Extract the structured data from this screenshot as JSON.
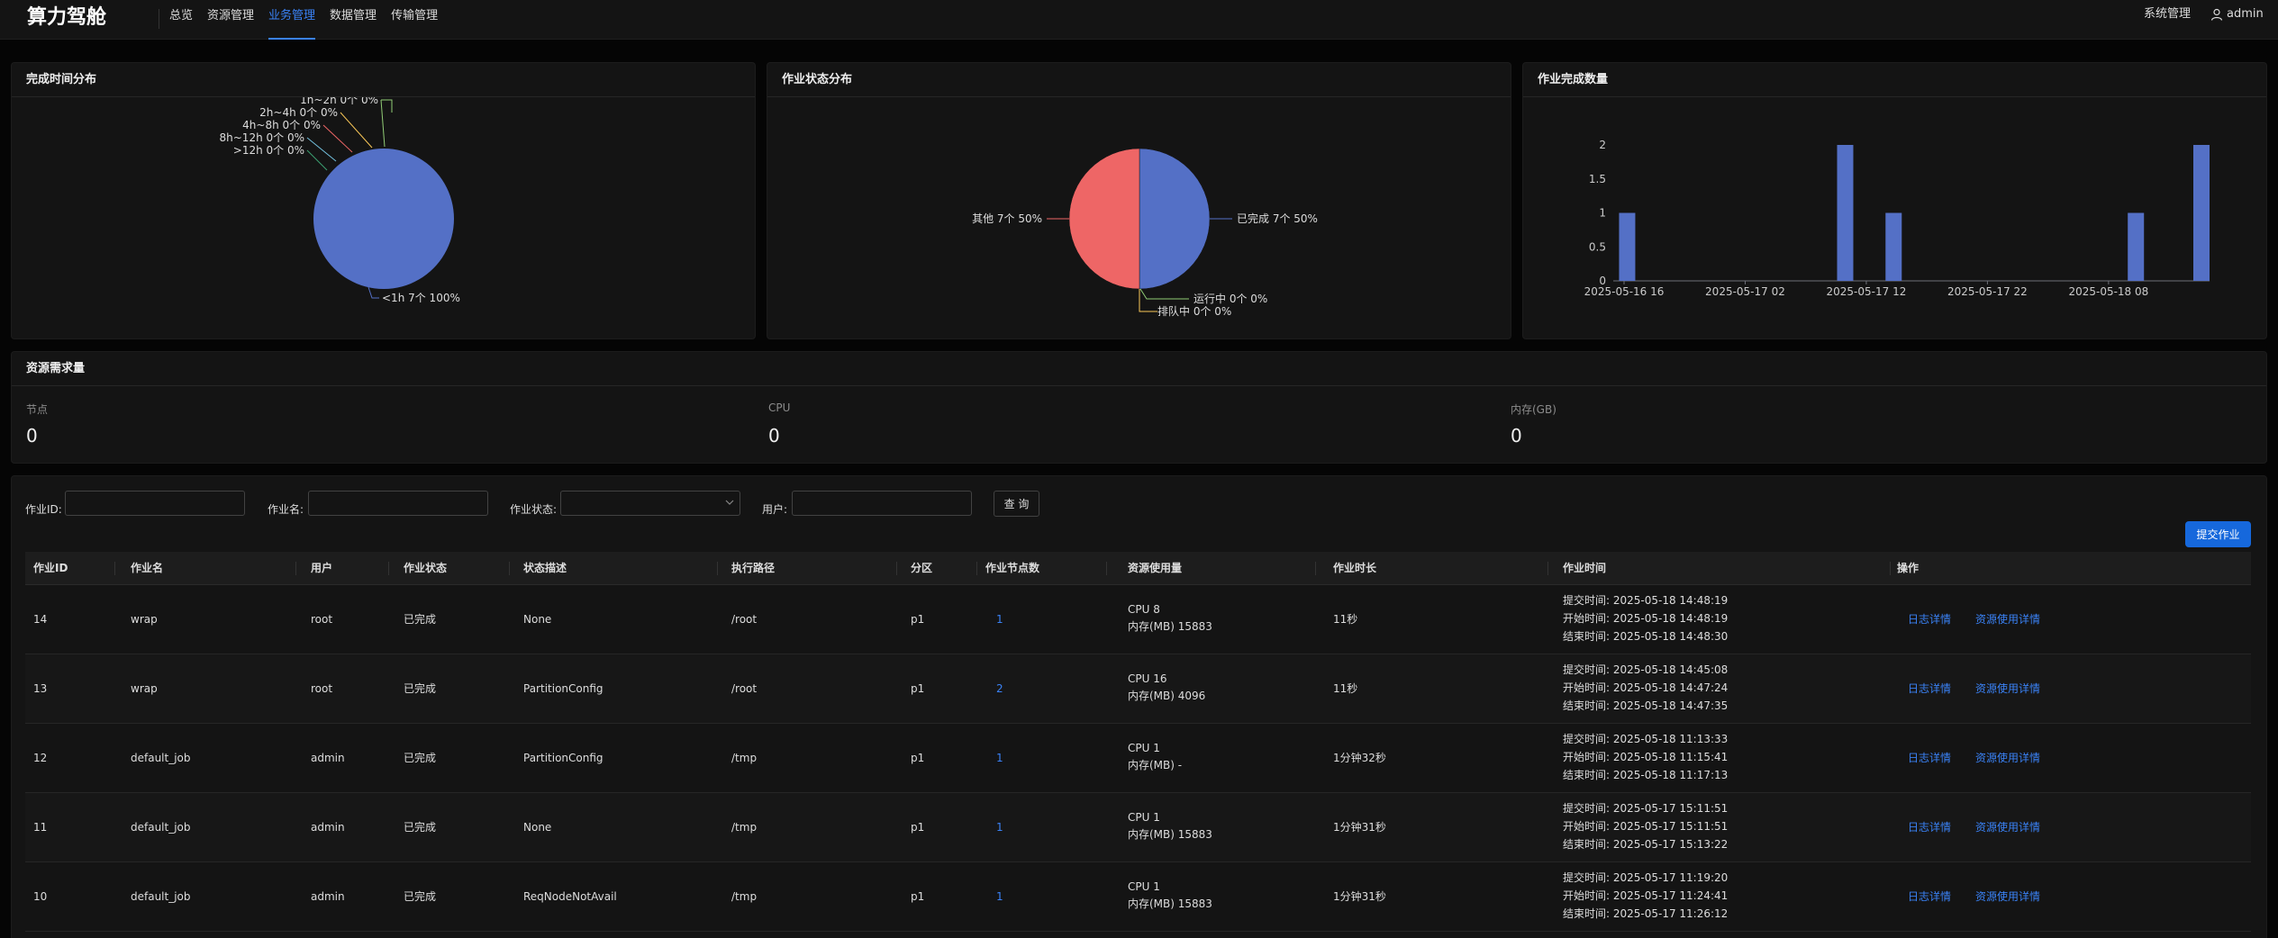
{
  "header": {
    "logo": "算力驾舱",
    "nav": [
      {
        "label": "总览"
      },
      {
        "label": "资源管理"
      },
      {
        "label": "业务管理"
      },
      {
        "label": "数据管理"
      },
      {
        "label": "传输管理"
      }
    ],
    "active_nav": "业务管理",
    "system": "系统管理",
    "user": "admin"
  },
  "panels": {
    "completion_time": "完成时间分布",
    "job_status": "作业状态分布",
    "job_count": "作业完成数量",
    "resource": "资源需求量"
  },
  "chart_data": [
    {
      "type": "pie",
      "title": "完成时间分布",
      "labels": [
        "<1h 7个 100%",
        "1h~2h 0个 0%",
        "2h~4h 0个 0%",
        "4h~8h 0个 0%",
        "8h~12h 0个 0%",
        ">12h 0个 0%"
      ],
      "values": [
        7,
        0,
        0,
        0,
        0,
        0
      ],
      "colors": [
        "#5470c6",
        "#91cc75",
        "#fac858",
        "#ee6666",
        "#73c0de",
        "#3ba272"
      ]
    },
    {
      "type": "pie",
      "title": "作业状态分布",
      "labels": [
        "已完成 7个 50%",
        "运行中 0个 0%",
        "排队中 0个 0%",
        "其他 7个 50%"
      ],
      "values": [
        7,
        0,
        0,
        7
      ],
      "colors": [
        "#5470c6",
        "#91cc75",
        "#fac858",
        "#ee6666"
      ]
    },
    {
      "type": "bar",
      "title": "作业完成数量",
      "x_ticks": [
        "2025-05-16 16",
        "2025-05-17 02",
        "2025-05-17 12",
        "2025-05-17 22",
        "2025-05-18 08"
      ],
      "y_ticks": [
        "0",
        "0.5",
        "1",
        "1.5",
        "2"
      ],
      "ylim": [
        0,
        2
      ],
      "xlim_hours": [
        0,
        47
      ],
      "bars_hour_offset": [
        1,
        19,
        23,
        43,
        47
      ],
      "values": [
        1,
        2,
        1,
        1,
        2
      ],
      "color": "#5470c6"
    }
  ],
  "resource": {
    "items": [
      {
        "label": "节点",
        "value": "0"
      },
      {
        "label": "CPU",
        "value": "0"
      },
      {
        "label": "内存(GB)",
        "value": "0"
      }
    ]
  },
  "filters": {
    "job_id": "作业ID:",
    "job_name": "作业名:",
    "job_status": "作业状态:",
    "user": "用户:",
    "query": "查 询",
    "submit": "提交作业"
  },
  "table": {
    "columns": [
      "作业ID",
      "作业名",
      "用户",
      "作业状态",
      "状态描述",
      "执行路径",
      "分区",
      "作业节点数",
      "资源使用量",
      "作业时长",
      "作业时间",
      "操作"
    ],
    "rows": [
      {
        "id": "14",
        "name": "wrap",
        "user": "root",
        "status": "已完成",
        "desc": "None",
        "path": "/root",
        "partition": "p1",
        "nodes": "1",
        "cpu": "CPU    8",
        "mem": "内存(MB)    15883",
        "duration": "11秒",
        "submit": "提交时间: 2025-05-18 14:48:19",
        "start": "开始时间: 2025-05-18 14:48:19",
        "end": "结束时间: 2025-05-18 14:48:30",
        "op1": "日志详情",
        "op2": "资源使用详情"
      },
      {
        "id": "13",
        "name": "wrap",
        "user": "root",
        "status": "已完成",
        "desc": "PartitionConfig",
        "path": "/root",
        "partition": "p1",
        "nodes": "2",
        "cpu": "CPU    16",
        "mem": "内存(MB)    4096",
        "duration": "11秒",
        "submit": "提交时间: 2025-05-18 14:45:08",
        "start": "开始时间: 2025-05-18 14:47:24",
        "end": "结束时间: 2025-05-18 14:47:35",
        "op1": "日志详情",
        "op2": "资源使用详情"
      },
      {
        "id": "12",
        "name": "default_job",
        "user": "admin",
        "status": "已完成",
        "desc": "PartitionConfig",
        "path": "/tmp",
        "partition": "p1",
        "nodes": "1",
        "cpu": "CPU    1",
        "mem": "内存(MB)    -",
        "duration": "1分钟32秒",
        "submit": "提交时间: 2025-05-18 11:13:33",
        "start": "开始时间: 2025-05-18 11:15:41",
        "end": "结束时间: 2025-05-18 11:17:13",
        "op1": "日志详情",
        "op2": "资源使用详情"
      },
      {
        "id": "11",
        "name": "default_job",
        "user": "admin",
        "status": "已完成",
        "desc": "None",
        "path": "/tmp",
        "partition": "p1",
        "nodes": "1",
        "cpu": "CPU    1",
        "mem": "内存(MB)    15883",
        "duration": "1分钟31秒",
        "submit": "提交时间: 2025-05-17 15:11:51",
        "start": "开始时间: 2025-05-17 15:11:51",
        "end": "结束时间: 2025-05-17 15:13:22",
        "op1": "日志详情",
        "op2": "资源使用详情"
      },
      {
        "id": "10",
        "name": "default_job",
        "user": "admin",
        "status": "已完成",
        "desc": "ReqNodeNotAvail",
        "path": "/tmp",
        "partition": "p1",
        "nodes": "1",
        "cpu": "CPU    1",
        "mem": "内存(MB)    15883",
        "duration": "1分钟31秒",
        "submit": "提交时间: 2025-05-17 11:19:20",
        "start": "开始时间: 2025-05-17 11:24:41",
        "end": "结束时间: 2025-05-17 11:26:12",
        "op1": "日志详情",
        "op2": "资源使用详情"
      }
    ]
  }
}
